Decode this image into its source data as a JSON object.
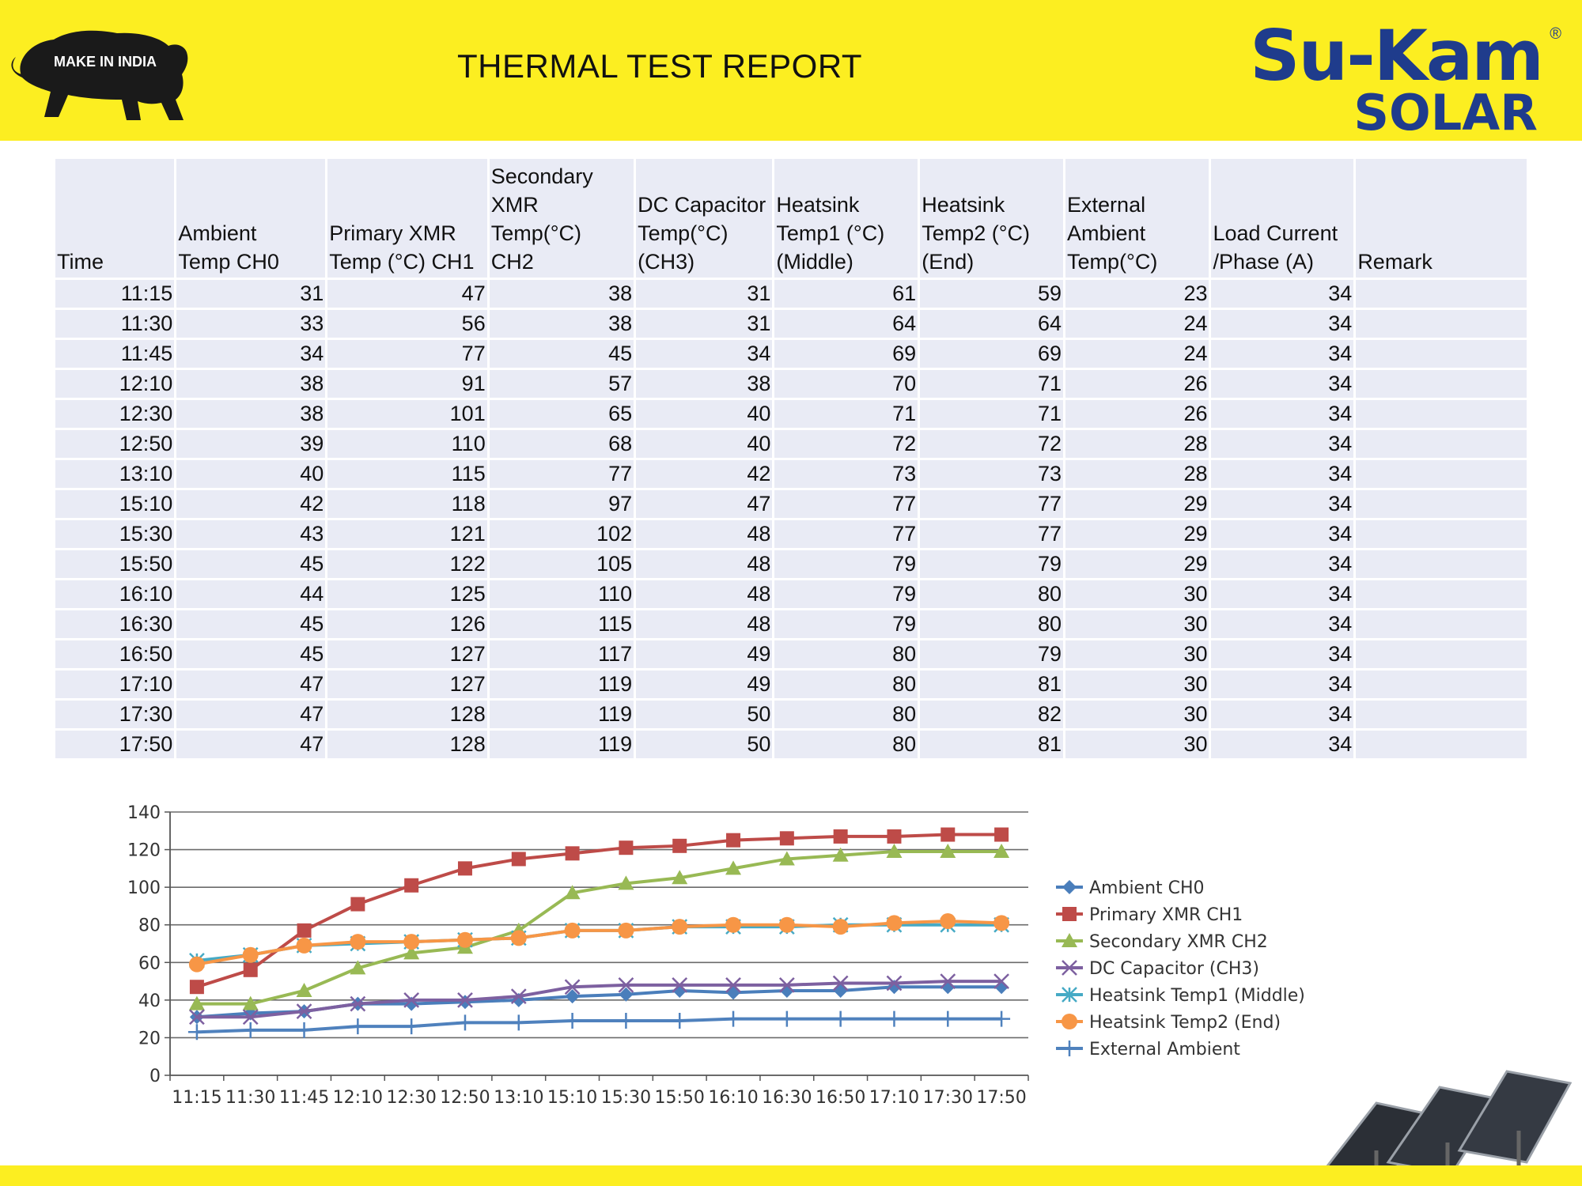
{
  "header": {
    "title": "THERMAL TEST  REPORT",
    "logo_left_text": "MAKE IN INDIA",
    "logo_right_main": "Su-Kam",
    "logo_right_sub": "SOLAR",
    "logo_right_reg": "®",
    "band_color": "#fcee21"
  },
  "table": {
    "headers": [
      "Time",
      "Ambient\nTemp CH0",
      "Primary XMR\nTemp (°C) CH1",
      "Secondary\nXMR Temp(°C)\nCH2",
      "DC Capacitor\nTemp(°C)\n(CH3)",
      "Heatsink\nTemp1 (°C)\n(Middle)",
      "Heatsink\nTemp2 (°C)\n(End)",
      "External\nAmbient\nTemp(°C)",
      "Load Current\n/Phase (A)",
      "Remark"
    ],
    "rows": [
      [
        "11:15",
        "31",
        "47",
        "38",
        "31",
        "61",
        "59",
        "23",
        "34",
        ""
      ],
      [
        "11:30",
        "33",
        "56",
        "38",
        "31",
        "64",
        "64",
        "24",
        "34",
        ""
      ],
      [
        "11:45",
        "34",
        "77",
        "45",
        "34",
        "69",
        "69",
        "24",
        "34",
        ""
      ],
      [
        "12:10",
        "38",
        "91",
        "57",
        "38",
        "70",
        "71",
        "26",
        "34",
        ""
      ],
      [
        "12:30",
        "38",
        "101",
        "65",
        "40",
        "71",
        "71",
        "26",
        "34",
        ""
      ],
      [
        "12:50",
        "39",
        "110",
        "68",
        "40",
        "72",
        "72",
        "28",
        "34",
        ""
      ],
      [
        "13:10",
        "40",
        "115",
        "77",
        "42",
        "73",
        "73",
        "28",
        "34",
        ""
      ],
      [
        "15:10",
        "42",
        "118",
        "97",
        "47",
        "77",
        "77",
        "29",
        "34",
        ""
      ],
      [
        "15:30",
        "43",
        "121",
        "102",
        "48",
        "77",
        "77",
        "29",
        "34",
        ""
      ],
      [
        "15:50",
        "45",
        "122",
        "105",
        "48",
        "79",
        "79",
        "29",
        "34",
        ""
      ],
      [
        "16:10",
        "44",
        "125",
        "110",
        "48",
        "79",
        "80",
        "30",
        "34",
        ""
      ],
      [
        "16:30",
        "45",
        "126",
        "115",
        "48",
        "79",
        "80",
        "30",
        "34",
        ""
      ],
      [
        "16:50",
        "45",
        "127",
        "117",
        "49",
        "80",
        "79",
        "30",
        "34",
        ""
      ],
      [
        "17:10",
        "47",
        "127",
        "119",
        "49",
        "80",
        "81",
        "30",
        "34",
        ""
      ],
      [
        "17:30",
        "47",
        "128",
        "119",
        "50",
        "80",
        "82",
        "30",
        "34",
        ""
      ],
      [
        "17:50",
        "47",
        "128",
        "119",
        "50",
        "80",
        "81",
        "30",
        "34",
        ""
      ]
    ]
  },
  "chart_data": {
    "type": "line",
    "title": "",
    "xlabel": "",
    "ylabel": "",
    "ylim": [
      0,
      140
    ],
    "yticks": [
      0,
      20,
      40,
      60,
      80,
      100,
      120,
      140
    ],
    "grid": true,
    "legend_position": "right",
    "categories": [
      "11:15",
      "11:30",
      "11:45",
      "12:10",
      "12:30",
      "12:50",
      "13:10",
      "15:10",
      "15:30",
      "15:50",
      "16:10",
      "16:30",
      "16:50",
      "17:10",
      "17:30",
      "17:50"
    ],
    "series": [
      {
        "name": "Ambient CH0",
        "marker": "diamond",
        "color": "#4a7ebb",
        "values": [
          31,
          33,
          34,
          38,
          38,
          39,
          40,
          42,
          43,
          45,
          44,
          45,
          45,
          47,
          47,
          47
        ]
      },
      {
        "name": "Primary XMR CH1",
        "marker": "square",
        "color": "#be4b48",
        "values": [
          47,
          56,
          77,
          91,
          101,
          110,
          115,
          118,
          121,
          122,
          125,
          126,
          127,
          127,
          128,
          128
        ]
      },
      {
        "name": "Secondary XMR CH2",
        "marker": "triangle",
        "color": "#98b954",
        "values": [
          38,
          38,
          45,
          57,
          65,
          68,
          77,
          97,
          102,
          105,
          110,
          115,
          117,
          119,
          119,
          119
        ]
      },
      {
        "name": "DC Capacitor (CH3)",
        "marker": "x",
        "color": "#7d60a0",
        "values": [
          31,
          31,
          34,
          38,
          40,
          40,
          42,
          47,
          48,
          48,
          48,
          48,
          49,
          49,
          50,
          50
        ]
      },
      {
        "name": "Heatsink Temp1 (Middle)",
        "marker": "star",
        "color": "#46aac5",
        "values": [
          61,
          64,
          69,
          70,
          71,
          72,
          73,
          77,
          77,
          79,
          79,
          79,
          80,
          80,
          80,
          80
        ]
      },
      {
        "name": "Heatsink Temp2 (End)",
        "marker": "circle",
        "color": "#f79646",
        "values": [
          59,
          64,
          69,
          71,
          71,
          72,
          73,
          77,
          77,
          79,
          80,
          80,
          79,
          81,
          82,
          81
        ]
      },
      {
        "name": "External Ambient",
        "marker": "plus",
        "color": "#4f81bd",
        "values": [
          23,
          24,
          24,
          26,
          26,
          28,
          28,
          29,
          29,
          29,
          30,
          30,
          30,
          30,
          30,
          30
        ]
      }
    ]
  }
}
